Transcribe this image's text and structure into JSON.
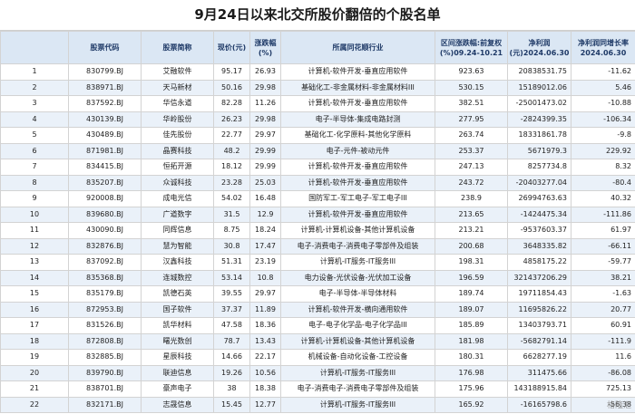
{
  "title": "9月24日以来北交所股价翻倍的个股名单",
  "headers": [
    "",
    "股票代码",
    "股票简称",
    "现价(元)",
    "涨跌幅(%)",
    "所属同花顺行业",
    "区间涨跌幅:前复权(%)09.24-10.21",
    "净利润(元)2024.06.30",
    "净利润同增长率2024.06.30"
  ],
  "rows": [
    [
      "1",
      "830799.BJ",
      "艾融软件",
      "95.17",
      "26.93",
      "计算机-软件开发-垂直应用软件",
      "923.63",
      "20838531.75",
      "-11.62"
    ],
    [
      "2",
      "838971.BJ",
      "天马新材",
      "50.16",
      "29.98",
      "基础化工-非金属材料-非金属材料III",
      "530.15",
      "15189012.06",
      "5.46"
    ],
    [
      "3",
      "837592.BJ",
      "华信永道",
      "82.28",
      "11.26",
      "计算机-软件开发-垂直应用软件",
      "382.51",
      "-25001473.02",
      "-10.88"
    ],
    [
      "4",
      "430139.BJ",
      "华岭股份",
      "26.23",
      "29.98",
      "电子-半导体-集成电路封测",
      "277.95",
      "-2824399.35",
      "-106.34"
    ],
    [
      "5",
      "430489.BJ",
      "佳先股份",
      "22.77",
      "29.97",
      "基础化工-化学原料-其他化学原料",
      "263.74",
      "18331861.78",
      "-9.8"
    ],
    [
      "6",
      "871981.BJ",
      "晶赛科技",
      "48.2",
      "29.99",
      "电子-元件-被动元件",
      "253.37",
      "5671979.3",
      "229.92"
    ],
    [
      "7",
      "834415.BJ",
      "恒拓开源",
      "18.12",
      "29.99",
      "计算机-软件开发-垂直应用软件",
      "247.13",
      "8257734.8",
      "8.32"
    ],
    [
      "8",
      "835207.BJ",
      "众诚科技",
      "23.28",
      "25.03",
      "计算机-软件开发-垂直应用软件",
      "243.72",
      "-20403277.04",
      "-80.4"
    ],
    [
      "9",
      "920008.BJ",
      "成电光信",
      "54.02",
      "16.48",
      "国防军工-军工电子-军工电子III",
      "238.9",
      "26994763.63",
      "40.32"
    ],
    [
      "10",
      "839680.BJ",
      "广道数字",
      "31.5",
      "12.9",
      "计算机-软件开发-垂直应用软件",
      "213.65",
      "-1424475.34",
      "-111.86"
    ],
    [
      "11",
      "430090.BJ",
      "同辉信息",
      "8.75",
      "18.24",
      "计算机-计算机设备-其他计算机设备",
      "213.21",
      "-9537603.37",
      "61.97"
    ],
    [
      "12",
      "832876.BJ",
      "慧为智能",
      "30.8",
      "17.47",
      "电子-消费电子-消费电子零部件及组装",
      "200.68",
      "3648335.82",
      "-66.11"
    ],
    [
      "13",
      "837092.BJ",
      "汉鑫科技",
      "51.31",
      "23.19",
      "计算机-IT服务-IT服务III",
      "198.31",
      "4858175.22",
      "-59.77"
    ],
    [
      "14",
      "835368.BJ",
      "连城数控",
      "53.14",
      "10.8",
      "电力设备-光伏设备-光伏加工设备",
      "196.59",
      "321437206.29",
      "38.21"
    ],
    [
      "15",
      "835179.BJ",
      "凯德石英",
      "39.55",
      "29.97",
      "电子-半导体-半导体材料",
      "189.74",
      "19711854.43",
      "-1.63"
    ],
    [
      "16",
      "872953.BJ",
      "国子软件",
      "37.37",
      "11.89",
      "计算机-软件开发-横向通用软件",
      "189.07",
      "11695826.22",
      "20.77"
    ],
    [
      "17",
      "831526.BJ",
      "凯华材料",
      "47.58",
      "18.36",
      "电子-电子化学品-电子化学品III",
      "185.89",
      "13403793.71",
      "60.91"
    ],
    [
      "18",
      "872808.BJ",
      "曙光数创",
      "78.7",
      "13.43",
      "计算机-计算机设备-其他计算机设备",
      "181.98",
      "-5682791.14",
      "-111.9"
    ],
    [
      "19",
      "832885.BJ",
      "星辰科技",
      "14.66",
      "22.17",
      "机械设备-自动化设备-工控设备",
      "180.31",
      "6628277.19",
      "11.6"
    ],
    [
      "20",
      "839790.BJ",
      "联迪信息",
      "19.26",
      "10.56",
      "计算机-IT服务-IT服务III",
      "176.98",
      "311475.66",
      "-86.08"
    ],
    [
      "21",
      "838701.BJ",
      "豪声电子",
      "38",
      "18.38",
      "电子-消费电子-消费电子零部件及组装",
      "175.96",
      "143188915.84",
      "725.13"
    ],
    [
      "22",
      "832171.BJ",
      "志晟信息",
      "15.45",
      "12.77",
      "计算机-IT服务-IT服务III",
      "165.92",
      "-16165798.6",
      "-56.38"
    ]
  ],
  "watermark": "格隆汇"
}
